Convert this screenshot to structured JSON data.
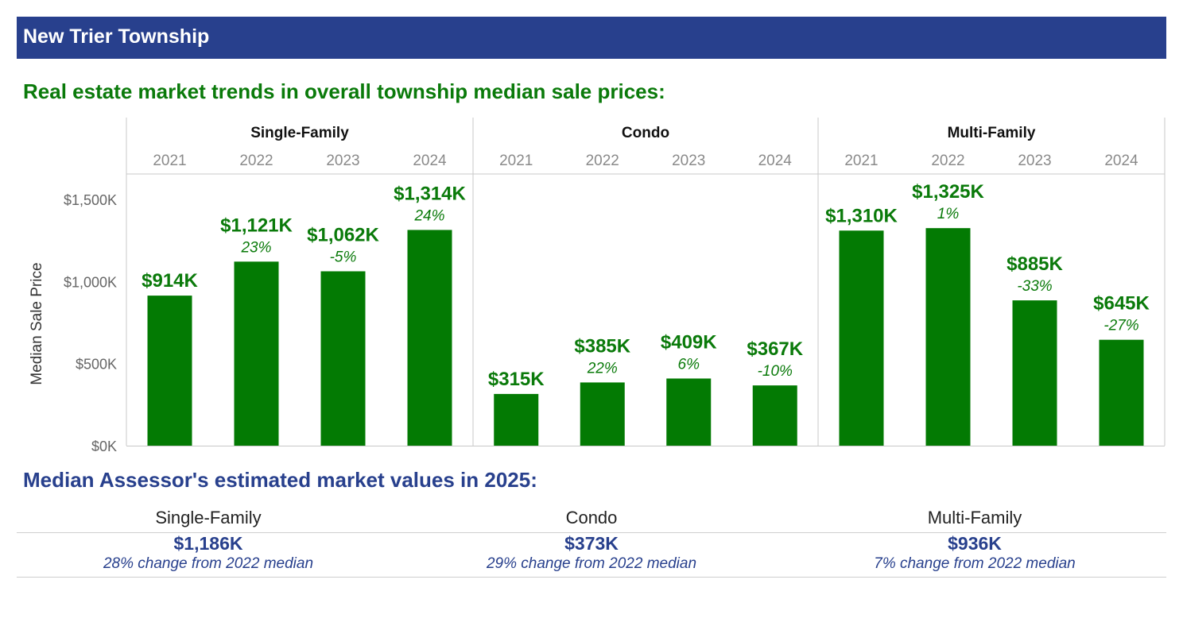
{
  "header": {
    "title": "New Trier Township"
  },
  "trends": {
    "title": "Real estate market trends in overall township median sale prices:"
  },
  "chart_data": {
    "type": "bar",
    "ylabel": "Median Sale Price",
    "ylim": [
      0,
      1650
    ],
    "yticks": [
      {
        "value": 0,
        "label": "$0K"
      },
      {
        "value": 500,
        "label": "$500K"
      },
      {
        "value": 1000,
        "label": "$1,000K"
      },
      {
        "value": 1500,
        "label": "$1,500K"
      }
    ],
    "bar_color": "#037a03",
    "label_color": "#0a7a0a",
    "panels": [
      {
        "name": "Single-Family",
        "categories": [
          "2021",
          "2022",
          "2023",
          "2024"
        ],
        "values": [
          914,
          1121,
          1062,
          1314
        ],
        "value_labels": [
          "$914K",
          "$1,121K",
          "$1,062K",
          "$1,314K"
        ],
        "change_labels": [
          "",
          "23%",
          "-5%",
          "24%"
        ]
      },
      {
        "name": "Condo",
        "categories": [
          "2021",
          "2022",
          "2023",
          "2024"
        ],
        "values": [
          315,
          385,
          409,
          367
        ],
        "value_labels": [
          "$315K",
          "$385K",
          "$409K",
          "$367K"
        ],
        "change_labels": [
          "",
          "22%",
          "6%",
          "-10%"
        ]
      },
      {
        "name": "Multi-Family",
        "categories": [
          "2021",
          "2022",
          "2023",
          "2024"
        ],
        "values": [
          1310,
          1325,
          885,
          645
        ],
        "value_labels": [
          "$1,310K",
          "$1,325K",
          "$885K",
          "$645K"
        ],
        "change_labels": [
          "",
          "1%",
          "-33%",
          "-27%"
        ]
      }
    ]
  },
  "assessor": {
    "title": "Median Assessor's estimated market values in 2025:",
    "items": [
      {
        "category": "Single-Family",
        "value": "$1,186K",
        "change": "28% change from 2022 median"
      },
      {
        "category": "Condo",
        "value": "$373K",
        "change": "29% change from 2022 median"
      },
      {
        "category": "Multi-Family",
        "value": "$936K",
        "change": "7% change from 2022 median"
      }
    ]
  }
}
